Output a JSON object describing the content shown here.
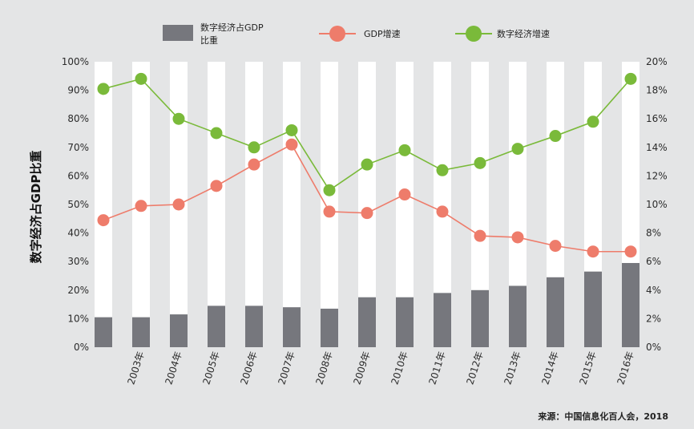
{
  "chart_data": {
    "type": "bar",
    "categories": [
      "",
      "2003年",
      "2004年",
      "2005年",
      "2006年",
      "2007年",
      "2008年",
      "2009年",
      "2010年",
      "2011年",
      "2012年",
      "2013年",
      "2014年",
      "2015年",
      "2016年"
    ],
    "series": [
      {
        "name": "数字经济占GDP比重",
        "type": "bar",
        "axis": "left",
        "color": "#76777d",
        "values": [
          10.5,
          10.5,
          11.5,
          14.5,
          14.5,
          14,
          13.5,
          17.5,
          17.5,
          19,
          20,
          21.5,
          24.5,
          26.5,
          29.5
        ]
      },
      {
        "name": "GDP增速",
        "type": "line",
        "axis": "right",
        "color": "#ee7c6b",
        "values": [
          8.9,
          9.9,
          10.0,
          11.3,
          12.8,
          14.2,
          9.5,
          9.4,
          10.7,
          9.5,
          7.8,
          7.7,
          7.1,
          6.7,
          6.7
        ]
      },
      {
        "name": "数字经济增速",
        "type": "line",
        "axis": "right",
        "color": "#7aba3a",
        "values": [
          18.1,
          18.8,
          16.0,
          15.0,
          14.0,
          15.2,
          11.0,
          12.8,
          13.8,
          12.4,
          12.9,
          13.9,
          14.8,
          15.8,
          18.8
        ]
      }
    ],
    "ylabel": "数字经济占GDP比重",
    "ylim_left": [
      0,
      100
    ],
    "ylim_right": [
      0,
      20
    ],
    "yticks_left": [
      "0%",
      "10%",
      "20%",
      "30%",
      "40%",
      "50%",
      "60%",
      "70%",
      "80%",
      "90%",
      "100%"
    ],
    "yticks_right": [
      "0%",
      "2%",
      "4%",
      "6%",
      "8%",
      "10%",
      "12%",
      "14%",
      "16%",
      "18%",
      "20%"
    ],
    "grid": false,
    "legend_position": "top",
    "legend": {
      "bar_label_line1": "数字经济占GDP",
      "bar_label_line2": "比重",
      "gdp_label": "GDP增速",
      "digital_label": "数字经济增速"
    },
    "bar_background_color": "#ffffff",
    "source": "来源：中国信息化百人会，2018"
  },
  "colors": {
    "background": "#e4e5e6",
    "bar": "#76777d",
    "gdp_line": "#ee7c6b",
    "digital_line": "#7aba3a"
  }
}
